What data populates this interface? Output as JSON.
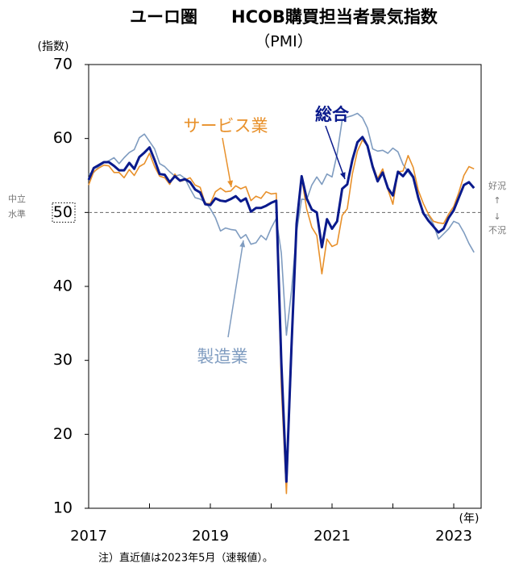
{
  "chart_data": {
    "type": "line",
    "title": "ユーロ圏　　HCOB購買担当者景気指数",
    "subtitle": "（PMI）",
    "y_label": "(指数)",
    "x_label": "(年)",
    "note": "注）直近値は2023年5月（速報値）。",
    "annotations": [
      {
        "text": "中立"
      },
      {
        "text": "水準"
      },
      {
        "text": "好況"
      },
      {
        "text": "↑"
      },
      {
        "text": "↓"
      },
      {
        "text": "不況"
      }
    ],
    "x": [
      2017,
      2017.083,
      2017.167,
      2017.25,
      2017.333,
      2017.417,
      2017.5,
      2017.583,
      2017.667,
      2017.75,
      2017.833,
      2017.917,
      2018,
      2018.083,
      2018.167,
      2018.25,
      2018.333,
      2018.417,
      2018.5,
      2018.583,
      2018.667,
      2018.75,
      2018.833,
      2018.917,
      2019,
      2019.083,
      2019.167,
      2019.25,
      2019.333,
      2019.417,
      2019.5,
      2019.583,
      2019.667,
      2019.75,
      2019.833,
      2019.917,
      2020,
      2020.083,
      2020.167,
      2020.25,
      2020.333,
      2020.417,
      2020.5,
      2020.583,
      2020.667,
      2020.75,
      2020.833,
      2020.917,
      2021,
      2021.083,
      2021.167,
      2021.25,
      2021.333,
      2021.417,
      2021.5,
      2021.583,
      2021.667,
      2021.75,
      2021.833,
      2021.917,
      2022,
      2022.083,
      2022.167,
      2022.25,
      2022.333,
      2022.417,
      2022.5,
      2022.583,
      2022.667,
      2022.75,
      2022.833,
      2022.917,
      2023,
      2023.083,
      2023.167,
      2023.25,
      2023.333
    ],
    "series": [
      {
        "name": "製造業",
        "color": "#7f9cc0",
        "width": 1.6,
        "values": [
          55.2,
          55.4,
          56.2,
          56.7,
          57.0,
          57.4,
          56.6,
          57.4,
          58.1,
          58.5,
          60.1,
          60.6,
          59.6,
          58.6,
          56.6,
          56.2,
          55.5,
          54.9,
          55.1,
          54.6,
          53.2,
          52.0,
          51.8,
          51.4,
          50.5,
          49.3,
          47.5,
          47.9,
          47.7,
          47.6,
          46.5,
          47.0,
          45.7,
          45.9,
          46.9,
          46.3,
          47.9,
          49.2,
          44.5,
          33.4,
          39.4,
          47.4,
          51.8,
          51.7,
          53.7,
          54.8,
          53.8,
          55.2,
          54.8,
          57.9,
          62.5,
          62.9,
          63.1,
          63.4,
          62.8,
          61.4,
          58.6,
          58.3,
          58.4,
          58.0,
          58.7,
          58.2,
          56.5,
          55.5,
          54.6,
          52.1,
          49.8,
          49.6,
          48.4,
          46.4,
          47.1,
          47.8,
          48.8,
          48.5,
          47.3,
          45.8,
          44.6
        ]
      },
      {
        "name": "サービス業",
        "color": "#e8902a",
        "width": 1.6,
        "values": [
          53.7,
          55.5,
          56.0,
          56.4,
          56.3,
          55.4,
          55.4,
          54.7,
          55.8,
          55.0,
          56.2,
          56.6,
          58.0,
          56.2,
          54.9,
          54.7,
          53.8,
          55.2,
          54.2,
          54.4,
          54.7,
          53.7,
          53.4,
          51.2,
          51.2,
          52.8,
          53.3,
          52.8,
          52.9,
          53.6,
          53.2,
          53.5,
          51.6,
          52.2,
          51.9,
          52.8,
          52.5,
          52.6,
          26.4,
          12.0,
          30.5,
          48.3,
          54.7,
          50.5,
          48.0,
          46.9,
          41.7,
          46.4,
          45.4,
          45.7,
          49.6,
          50.5,
          55.2,
          58.3,
          59.8,
          59.0,
          56.4,
          54.6,
          55.9,
          53.1,
          51.1,
          55.5,
          55.6,
          57.7,
          56.1,
          53.0,
          51.2,
          49.8,
          48.8,
          48.6,
          48.5,
          49.8,
          50.8,
          52.7,
          55.0,
          56.2,
          55.9
        ]
      },
      {
        "name": "総合",
        "color": "#0a1a8c",
        "width": 3,
        "values": [
          54.4,
          56.0,
          56.4,
          56.8,
          56.8,
          56.3,
          55.7,
          55.7,
          56.7,
          55.9,
          57.5,
          58.1,
          58.8,
          57.1,
          55.2,
          55.1,
          54.1,
          54.9,
          54.3,
          54.5,
          54.1,
          53.1,
          52.7,
          51.1,
          51.0,
          51.9,
          51.6,
          51.5,
          51.8,
          52.2,
          51.5,
          51.9,
          50.1,
          50.6,
          50.6,
          50.9,
          51.3,
          51.6,
          29.7,
          13.6,
          31.9,
          48.5,
          54.9,
          51.9,
          50.4,
          50.0,
          45.3,
          49.1,
          47.8,
          48.8,
          53.2,
          53.8,
          57.1,
          59.5,
          60.2,
          59.0,
          56.2,
          54.2,
          55.4,
          53.3,
          52.3,
          55.5,
          54.9,
          55.8,
          54.8,
          52.0,
          49.9,
          48.9,
          48.1,
          47.3,
          47.8,
          49.3,
          50.3,
          52.0,
          53.7,
          54.1,
          53.3
        ]
      }
    ],
    "xlim": [
      2017,
      2023.45
    ],
    "xticks": [
      2017,
      2019,
      2021,
      2023
    ],
    "xminorticks": [
      2018,
      2020,
      2022
    ],
    "ylim": [
      10,
      70
    ],
    "yticks": [
      10,
      20,
      30,
      40,
      50,
      60,
      70
    ],
    "hline": 50,
    "grid": false
  }
}
